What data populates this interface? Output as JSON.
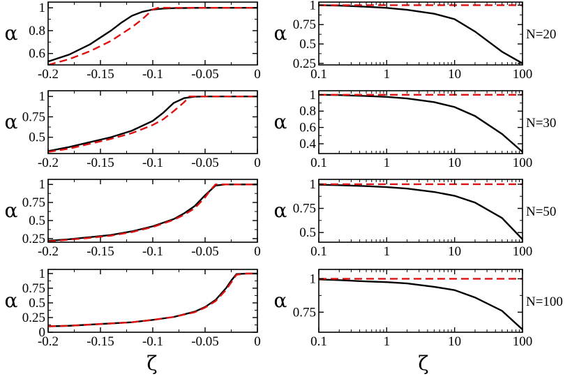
{
  "chart_data": [
    {
      "type": "line",
      "panel": "left-1",
      "xscale": "linear",
      "xlim": [
        -0.2,
        0
      ],
      "ylim": [
        0.5,
        1.05
      ],
      "xticks": [
        -0.2,
        -0.15,
        -0.1,
        -0.05,
        0
      ],
      "xticklabels": [
        "-0.2",
        "-0.15",
        "-0.1",
        "-0.05",
        "0"
      ],
      "yticks": [
        0.6,
        0.8,
        1
      ],
      "yticklabels": [
        "0.6",
        "0.8",
        "1"
      ],
      "ylabel": "α",
      "series": [
        {
          "color": "#000000",
          "dash": "solid",
          "x": [
            -0.2,
            -0.18,
            -0.16,
            -0.14,
            -0.13,
            -0.12,
            -0.11,
            -0.1,
            -0.09,
            -0.08,
            -0.06,
            -0.04,
            -0.02,
            0
          ],
          "y": [
            0.53,
            0.59,
            0.68,
            0.8,
            0.87,
            0.93,
            0.965,
            0.985,
            0.993,
            0.997,
            0.999,
            1,
            1,
            1
          ]
        },
        {
          "color": "#dd1111",
          "dash": "dashed",
          "x": [
            -0.2,
            -0.18,
            -0.16,
            -0.14,
            -0.12,
            -0.11,
            -0.1,
            -0.095,
            -0.09,
            -0.05,
            0
          ],
          "y": [
            0.5,
            0.55,
            0.62,
            0.71,
            0.83,
            0.9,
            0.985,
            1,
            1,
            1,
            1
          ]
        }
      ]
    },
    {
      "type": "line",
      "panel": "right-1",
      "xscale": "log",
      "xlim": [
        0.1,
        100
      ],
      "ylim": [
        0.23,
        1.04
      ],
      "xticks": [
        0.1,
        1,
        10,
        100
      ],
      "xticklabels": [
        "0.1",
        "1",
        "10",
        "100"
      ],
      "yticks": [
        0.25,
        0.5,
        0.75,
        1
      ],
      "yticklabels": [
        "0.25",
        "0.5",
        "0.75",
        "1"
      ],
      "ylabel": "α",
      "label": "N=20",
      "series": [
        {
          "color": "#000000",
          "dash": "solid",
          "x": [
            0.1,
            0.2,
            0.5,
            1,
            2,
            5,
            10,
            20,
            50,
            100
          ],
          "y": [
            1,
            0.995,
            0.98,
            0.965,
            0.94,
            0.89,
            0.82,
            0.66,
            0.4,
            0.25
          ]
        },
        {
          "color": "#dd1111",
          "dash": "dashed",
          "x": [
            0.1,
            100
          ],
          "y": [
            1,
            1
          ]
        }
      ]
    },
    {
      "type": "line",
      "panel": "left-2",
      "xscale": "linear",
      "xlim": [
        -0.2,
        0
      ],
      "ylim": [
        0.3,
        1.07
      ],
      "xticks": [
        -0.2,
        -0.15,
        -0.1,
        -0.05,
        0
      ],
      "xticklabels": [
        "-0.2",
        "-0.15",
        "-0.1",
        "-0.05",
        "0"
      ],
      "yticks": [
        0.5,
        0.75,
        1
      ],
      "yticklabels": [
        "0.5",
        "0.75",
        "1"
      ],
      "ylabel": "α",
      "series": [
        {
          "color": "#000000",
          "dash": "solid",
          "x": [
            -0.2,
            -0.18,
            -0.16,
            -0.14,
            -0.12,
            -0.1,
            -0.09,
            -0.08,
            -0.07,
            -0.06,
            -0.05,
            0
          ],
          "y": [
            0.33,
            0.38,
            0.44,
            0.5,
            0.58,
            0.7,
            0.8,
            0.92,
            0.98,
            0.997,
            1,
            1
          ]
        },
        {
          "color": "#dd1111",
          "dash": "dashed",
          "x": [
            -0.2,
            -0.18,
            -0.16,
            -0.14,
            -0.12,
            -0.1,
            -0.09,
            -0.08,
            -0.07,
            -0.065,
            -0.06,
            0
          ],
          "y": [
            0.32,
            0.36,
            0.42,
            0.48,
            0.55,
            0.65,
            0.72,
            0.82,
            0.93,
            1,
            1,
            1
          ]
        }
      ]
    },
    {
      "type": "line",
      "panel": "right-2",
      "xscale": "log",
      "xlim": [
        0.1,
        100
      ],
      "ylim": [
        0.28,
        1.05
      ],
      "xticks": [
        0.1,
        1,
        10,
        100
      ],
      "xticklabels": [
        "0.1",
        "1",
        "10",
        "100"
      ],
      "yticks": [
        0.4,
        0.6,
        0.8,
        1
      ],
      "yticklabels": [
        "0.4",
        "0.6",
        "0.8",
        "1"
      ],
      "ylabel": "α",
      "label": "N=30",
      "series": [
        {
          "color": "#000000",
          "dash": "solid",
          "x": [
            0.1,
            0.2,
            0.5,
            1,
            2,
            5,
            10,
            20,
            50,
            100
          ],
          "y": [
            1,
            0.997,
            0.985,
            0.975,
            0.955,
            0.91,
            0.85,
            0.74,
            0.52,
            0.3
          ]
        },
        {
          "color": "#dd1111",
          "dash": "dashed",
          "x": [
            0.1,
            100
          ],
          "y": [
            1,
            1
          ]
        }
      ]
    },
    {
      "type": "line",
      "panel": "left-3",
      "xscale": "linear",
      "xlim": [
        -0.2,
        0
      ],
      "ylim": [
        0.2,
        1.07
      ],
      "xticks": [
        -0.2,
        -0.15,
        -0.1,
        -0.05,
        0
      ],
      "xticklabels": [
        "-0.2",
        "-0.15",
        "-0.1",
        "-0.05",
        "0"
      ],
      "yticks": [
        0.25,
        0.5,
        0.75,
        1
      ],
      "yticklabels": [
        "0.25",
        "0.5",
        "0.75",
        "1"
      ],
      "ylabel": "α",
      "series": [
        {
          "color": "#000000",
          "dash": "solid",
          "x": [
            -0.2,
            -0.18,
            -0.16,
            -0.14,
            -0.12,
            -0.1,
            -0.08,
            -0.07,
            -0.06,
            -0.05,
            -0.04,
            -0.03,
            0
          ],
          "y": [
            0.22,
            0.24,
            0.27,
            0.3,
            0.35,
            0.42,
            0.52,
            0.6,
            0.7,
            0.85,
            0.985,
            1,
            1
          ]
        },
        {
          "color": "#dd1111",
          "dash": "dashed",
          "x": [
            -0.2,
            -0.18,
            -0.16,
            -0.14,
            -0.12,
            -0.1,
            -0.08,
            -0.07,
            -0.06,
            -0.05,
            -0.045,
            -0.04,
            0
          ],
          "y": [
            0.21,
            0.235,
            0.26,
            0.29,
            0.34,
            0.41,
            0.51,
            0.58,
            0.67,
            0.82,
            0.92,
            1,
            1
          ]
        }
      ]
    },
    {
      "type": "line",
      "panel": "right-3",
      "xscale": "log",
      "xlim": [
        0.1,
        100
      ],
      "ylim": [
        0.4,
        1.05
      ],
      "xticks": [
        0.1,
        1,
        10,
        100
      ],
      "xticklabels": [
        "0.1",
        "1",
        "10",
        "100"
      ],
      "yticks": [
        0.5,
        0.75,
        1
      ],
      "yticklabels": [
        "0.5",
        "0.75",
        "1"
      ],
      "ylabel": "α",
      "label": "N=50",
      "series": [
        {
          "color": "#000000",
          "dash": "solid",
          "x": [
            0.1,
            0.2,
            0.5,
            1,
            2,
            5,
            10,
            20,
            50,
            100
          ],
          "y": [
            0.995,
            0.99,
            0.98,
            0.97,
            0.955,
            0.92,
            0.88,
            0.81,
            0.65,
            0.43
          ]
        },
        {
          "color": "#dd1111",
          "dash": "dashed",
          "x": [
            0.1,
            100
          ],
          "y": [
            1,
            1
          ]
        }
      ]
    },
    {
      "type": "line",
      "panel": "left-4",
      "xscale": "linear",
      "xlim": [
        -0.2,
        0
      ],
      "ylim": [
        0,
        1.07
      ],
      "xticks": [
        -0.2,
        -0.15,
        -0.1,
        -0.05,
        0
      ],
      "xticklabels": [
        "-0.2",
        "-0.15",
        "-0.1",
        "-0.05",
        "0"
      ],
      "yticks": [
        0,
        0.25,
        0.5,
        0.75,
        1
      ],
      "yticklabels": [
        "0",
        "0.25",
        "0.5",
        "0.75",
        "1"
      ],
      "ylabel": "α",
      "series": [
        {
          "color": "#000000",
          "dash": "solid",
          "x": [
            -0.2,
            -0.18,
            -0.16,
            -0.14,
            -0.12,
            -0.1,
            -0.08,
            -0.06,
            -0.05,
            -0.04,
            -0.03,
            -0.025,
            -0.02,
            -0.01,
            0
          ],
          "y": [
            0.1,
            0.11,
            0.13,
            0.15,
            0.17,
            0.21,
            0.26,
            0.35,
            0.43,
            0.55,
            0.75,
            0.88,
            0.99,
            1,
            1
          ]
        },
        {
          "color": "#dd1111",
          "dash": "dashed",
          "x": [
            -0.2,
            -0.18,
            -0.16,
            -0.14,
            -0.12,
            -0.1,
            -0.08,
            -0.06,
            -0.05,
            -0.04,
            -0.03,
            -0.025,
            -0.02,
            -0.01,
            0
          ],
          "y": [
            0.1,
            0.11,
            0.13,
            0.15,
            0.17,
            0.21,
            0.26,
            0.34,
            0.42,
            0.53,
            0.72,
            0.85,
            0.98,
            1,
            1
          ]
        }
      ]
    },
    {
      "type": "line",
      "panel": "right-4",
      "xscale": "log",
      "xlim": [
        0.1,
        100
      ],
      "ylim": [
        0.6,
        1.07
      ],
      "xticks": [
        0.1,
        1,
        10,
        100
      ],
      "xticklabels": [
        "0.1",
        "1",
        "10",
        "100"
      ],
      "yticks": [
        0.75,
        1
      ],
      "yticklabels": [
        "0.75",
        "1"
      ],
      "ylabel": "α",
      "label": "N=100",
      "series": [
        {
          "color": "#000000",
          "dash": "solid",
          "x": [
            0.1,
            0.2,
            0.5,
            1,
            2,
            5,
            10,
            20,
            50,
            100
          ],
          "y": [
            0.995,
            0.99,
            0.98,
            0.975,
            0.965,
            0.94,
            0.915,
            0.86,
            0.76,
            0.62
          ]
        },
        {
          "color": "#dd1111",
          "dash": "dashed",
          "x": [
            0.1,
            100
          ],
          "y": [
            1,
            1
          ]
        }
      ]
    }
  ],
  "xlabels": {
    "left": "ζ",
    "right": "ζ"
  }
}
